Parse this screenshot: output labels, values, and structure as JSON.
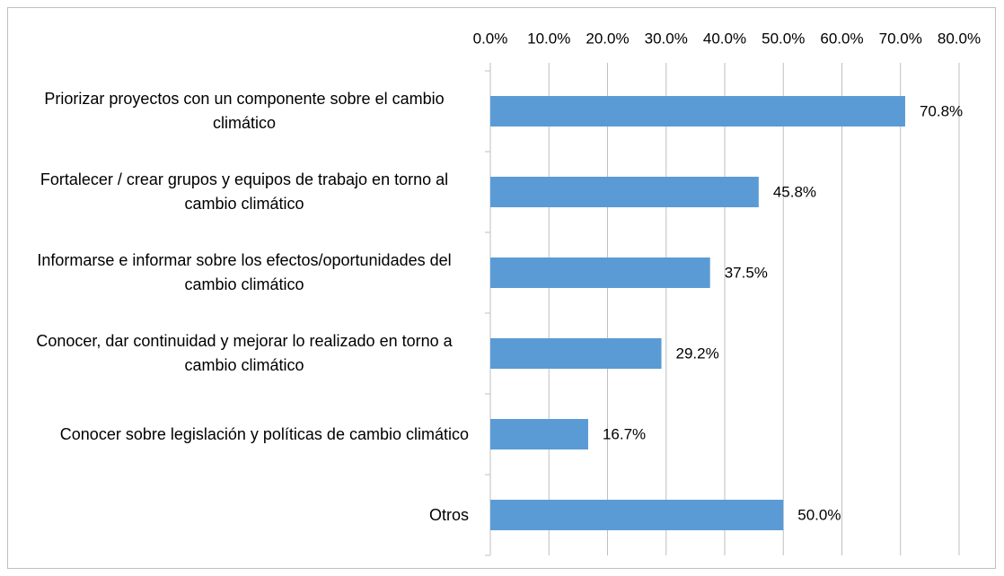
{
  "chart_data": {
    "type": "bar",
    "orientation": "horizontal",
    "categories": [
      "Priorizar proyectos con un componente sobre el cambio climático",
      "Fortalecer / crear grupos y equipos de trabajo en torno al cambio climático",
      "Informarse e informar sobre los efectos/oportunidades del cambio climático",
      "Conocer, dar continuidad y mejorar lo realizado en torno a cambio climático",
      "Conocer sobre legislación y políticas de cambio climático",
      "Otros"
    ],
    "values": [
      70.8,
      45.8,
      37.5,
      29.2,
      16.7,
      50.0
    ],
    "value_labels": [
      "70.8%",
      "45.8%",
      "37.5%",
      "29.2%",
      "16.7%",
      "50.0%"
    ],
    "color": "#5b9bd5",
    "xlim": [
      0,
      80
    ],
    "xticks": [
      {
        "value": 0,
        "label": "0.0%"
      },
      {
        "value": 10,
        "label": "10.0%"
      },
      {
        "value": 20,
        "label": "20.0%"
      },
      {
        "value": 30,
        "label": "30.0%"
      },
      {
        "value": 40,
        "label": "40.0%"
      },
      {
        "value": 50,
        "label": "50.0%"
      },
      {
        "value": 60,
        "label": "60.0%"
      },
      {
        "value": 70,
        "label": "70.0%"
      },
      {
        "value": 80,
        "label": "80.0%"
      }
    ],
    "grid": true
  }
}
